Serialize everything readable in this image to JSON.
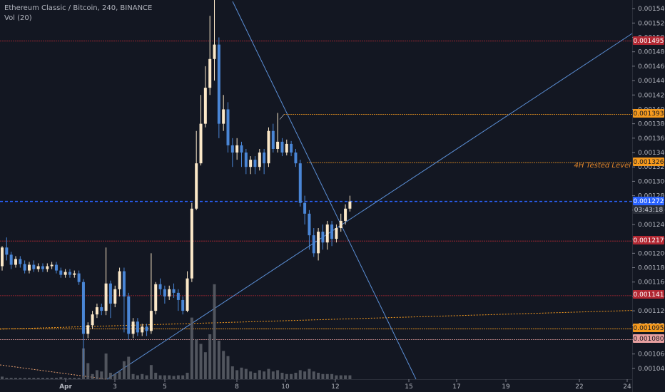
{
  "header": {
    "title": "Ethereum Classic / Bitcoin, 240, BINANCE",
    "volume_label": "Vol (20)"
  },
  "annotation": {
    "text": "4H Tested Level",
    "color": "#e8892a"
  },
  "price_axis": {
    "ticks": [
      "0.001540",
      "0.001520",
      "0.001500",
      "0.001480",
      "0.001460",
      "0.001440",
      "0.001420",
      "0.001400",
      "0.001380",
      "0.001360",
      "0.001340",
      "0.001320",
      "0.001300",
      "0.001280",
      "0.001260",
      "0.001240",
      "0.001220",
      "0.001200",
      "0.001180",
      "0.001160",
      "0.001140",
      "0.001120",
      "0.001100",
      "0.001080",
      "0.001060",
      "0.001040"
    ]
  },
  "time_axis": {
    "ticks": [
      "Apr",
      "3",
      "5",
      "8",
      "10",
      "12",
      "15",
      "17",
      "19",
      "22",
      "24"
    ]
  },
  "price_tags": [
    {
      "label": "0.001495",
      "bg": "#b22833",
      "fg": "#ffffff"
    },
    {
      "label": "0.001393",
      "bg": "#f59a1e",
      "fg": "#131722"
    },
    {
      "label": "0.001326",
      "bg": "#f59a1e",
      "fg": "#131722"
    },
    {
      "label": "0.001272",
      "bg": "#2962ff",
      "fg": "#ffffff"
    },
    {
      "label": "03:43:18",
      "bg": "#2a2e39",
      "fg": "#d1d4dc"
    },
    {
      "label": "0.001217",
      "bg": "#b22833",
      "fg": "#ffffff"
    },
    {
      "label": "0.001141",
      "bg": "#b22833",
      "fg": "#ffffff"
    },
    {
      "label": "0.001095",
      "bg": "#f59a1e",
      "fg": "#131722"
    },
    {
      "label": "0.001080",
      "bg": "#e8a0a0",
      "fg": "#131722"
    }
  ],
  "colors": {
    "background": "#131722",
    "up_candle": "#fbe8c8",
    "down_candle": "#4a86d6",
    "resistance_red": "#b22833",
    "level_orange": "#f59a1e",
    "current_price_blue": "#2962ff",
    "trendline": "#5b8fd6",
    "volume": "#5d6068"
  },
  "chart_data": {
    "type": "candlestick",
    "title": "Ethereum Classic / Bitcoin, 240, BINANCE",
    "ylim": [
      0.001025,
      0.001552
    ],
    "horizontal_levels": [
      0.001495,
      0.001393,
      0.001326,
      0.001272,
      0.001217,
      0.001141,
      0.001095,
      0.00108
    ],
    "candles": [
      [
        1.182,
        1.208,
        1.21,
        1.176
      ],
      [
        1.208,
        1.198,
        1.222,
        1.19
      ],
      [
        1.198,
        1.184,
        1.202,
        1.178
      ],
      [
        1.184,
        1.192,
        1.196,
        1.18
      ],
      [
        1.192,
        1.185,
        1.196,
        1.18
      ],
      [
        1.185,
        1.176,
        1.19,
        1.172
      ],
      [
        1.176,
        1.184,
        1.188,
        1.172
      ],
      [
        1.184,
        1.178,
        1.19,
        1.174
      ],
      [
        1.178,
        1.182,
        1.186,
        1.174
      ],
      [
        1.182,
        1.178,
        1.186,
        1.174
      ],
      [
        1.178,
        1.182,
        1.186,
        1.174
      ],
      [
        1.182,
        1.184,
        1.188,
        1.178
      ],
      [
        1.184,
        1.176,
        1.188,
        1.172
      ],
      [
        1.176,
        1.17,
        1.18,
        1.166
      ],
      [
        1.17,
        1.174,
        1.178,
        1.166
      ],
      [
        1.174,
        1.17,
        1.178,
        1.166
      ],
      [
        1.17,
        1.172,
        1.176,
        1.166
      ],
      [
        1.172,
        1.16,
        1.176,
        1.156
      ],
      [
        1.16,
        1.088,
        1.164,
        1.03
      ],
      [
        1.088,
        1.1,
        1.104,
        1.082
      ],
      [
        1.1,
        1.115,
        1.12,
        1.095
      ],
      [
        1.115,
        1.125,
        1.13,
        1.11
      ],
      [
        1.125,
        1.12,
        1.13,
        1.114
      ],
      [
        1.12,
        1.158,
        1.208,
        1.114
      ],
      [
        1.158,
        1.13,
        1.162,
        1.11
      ],
      [
        1.13,
        1.15,
        1.155,
        1.125
      ],
      [
        1.15,
        1.175,
        1.18,
        1.14
      ],
      [
        1.175,
        1.14,
        1.18,
        1.09
      ],
      [
        1.14,
        1.088,
        1.145,
        1.08
      ],
      [
        1.088,
        1.105,
        1.11,
        1.082
      ],
      [
        1.105,
        1.09,
        1.11,
        1.085
      ],
      [
        1.09,
        1.098,
        1.102,
        1.085
      ],
      [
        1.098,
        1.092,
        1.102,
        1.085
      ],
      [
        1.092,
        1.12,
        1.2,
        1.088
      ],
      [
        1.12,
        1.157,
        1.16,
        1.115
      ],
      [
        1.157,
        1.15,
        1.165,
        1.142
      ],
      [
        1.15,
        1.14,
        1.155,
        1.13
      ],
      [
        1.14,
        1.15,
        1.155,
        1.135
      ],
      [
        1.15,
        1.145,
        1.158,
        1.138
      ],
      [
        1.145,
        1.135,
        1.15,
        1.12
      ],
      [
        1.135,
        1.12,
        1.14,
        1.115
      ],
      [
        1.12,
        1.165,
        1.175,
        1.118
      ],
      [
        1.165,
        1.262,
        1.27,
        1.16
      ],
      [
        1.262,
        1.325,
        1.37,
        1.26
      ],
      [
        1.325,
        1.38,
        1.42,
        1.322
      ],
      [
        1.38,
        1.43,
        1.46,
        1.375
      ],
      [
        1.43,
        1.47,
        1.53,
        1.42
      ],
      [
        1.47,
        1.49,
        1.56,
        1.44
      ],
      [
        1.49,
        1.38,
        1.5,
        1.36
      ],
      [
        1.38,
        1.4,
        1.42,
        1.37
      ],
      [
        1.4,
        1.35,
        1.41,
        1.34
      ],
      [
        1.35,
        1.34,
        1.36,
        1.32
      ],
      [
        1.34,
        1.35,
        1.36,
        1.33
      ],
      [
        1.35,
        1.34,
        1.355,
        1.32
      ],
      [
        1.34,
        1.32,
        1.345,
        1.31
      ],
      [
        1.32,
        1.33,
        1.335,
        1.31
      ],
      [
        1.33,
        1.32,
        1.335,
        1.31
      ],
      [
        1.32,
        1.34,
        1.345,
        1.315
      ],
      [
        1.34,
        1.325,
        1.345,
        1.31
      ],
      [
        1.325,
        1.37,
        1.375,
        1.32
      ],
      [
        1.37,
        1.345,
        1.38,
        1.34
      ],
      [
        1.345,
        1.355,
        1.395,
        1.34
      ],
      [
        1.355,
        1.34,
        1.36,
        1.335
      ],
      [
        1.34,
        1.352,
        1.358,
        1.336
      ],
      [
        1.352,
        1.34,
        1.356,
        1.335
      ],
      [
        1.34,
        1.325,
        1.345,
        1.32
      ],
      [
        1.325,
        1.27,
        1.33,
        1.265
      ],
      [
        1.27,
        1.255,
        1.28,
        1.24
      ],
      [
        1.255,
        1.225,
        1.26,
        1.205
      ],
      [
        1.225,
        1.2,
        1.235,
        1.195
      ],
      [
        1.2,
        1.23,
        1.235,
        1.19
      ],
      [
        1.23,
        1.215,
        1.24,
        1.205
      ],
      [
        1.215,
        1.24,
        1.245,
        1.205
      ],
      [
        1.24,
        1.22,
        1.245,
        1.21
      ],
      [
        1.22,
        1.235,
        1.24,
        1.215
      ],
      [
        1.235,
        1.245,
        1.255,
        1.23
      ],
      [
        1.245,
        1.262,
        1.268,
        1.24
      ],
      [
        1.262,
        1.272,
        1.28,
        1.258
      ]
    ],
    "volume": [
      4,
      2,
      2,
      2,
      2,
      2,
      2,
      2,
      2,
      2,
      2,
      2,
      2,
      3,
      2,
      2,
      2,
      2,
      48,
      25,
      8,
      14,
      12,
      40,
      10,
      8,
      12,
      28,
      35,
      8,
      6,
      8,
      6,
      22,
      10,
      6,
      6,
      6,
      5,
      6,
      6,
      10,
      96,
      62,
      55,
      42,
      70,
      148,
      60,
      44,
      36,
      20,
      14,
      18,
      16,
      12,
      10,
      14,
      12,
      16,
      12,
      14,
      10,
      8,
      8,
      10,
      14,
      12,
      16,
      12,
      10,
      8,
      8,
      8,
      6,
      6,
      6,
      6
    ]
  }
}
